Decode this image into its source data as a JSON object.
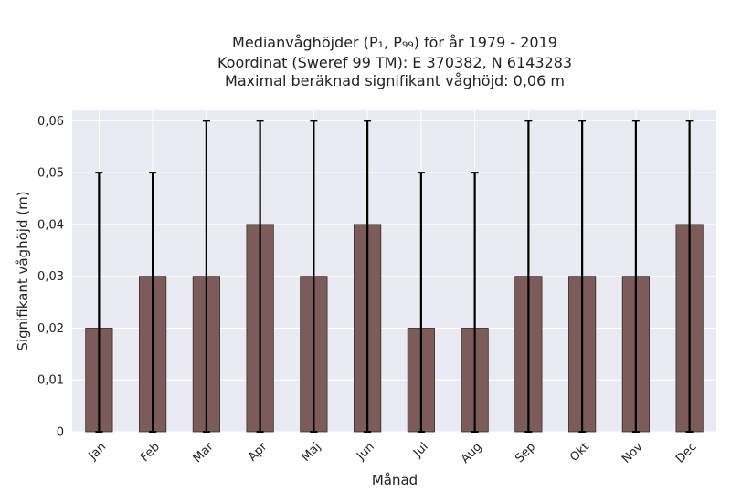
{
  "colors": {
    "plot_background": "#eaeaf2",
    "grid": "#ffffff",
    "bar_fill": "#7b5c5a",
    "bar_edge": "#3a2a29",
    "errorbar": "#000000"
  },
  "chart_data": {
    "type": "bar",
    "title_lines": [
      "Medianvåghöjder (P₁, P₉₉) för år 1979 - 2019",
      "Koordinat (Sweref 99 TM): E 370382, N 6143283",
      "Maximal beräknad signifikant våghöjd: 0,06 m"
    ],
    "xlabel": "Månad",
    "ylabel": "Signifikant våghöjd (m)",
    "ylim": [
      0,
      0.062
    ],
    "yticks": [
      0,
      0.01,
      0.02,
      0.03,
      0.04,
      0.05,
      0.06
    ],
    "ytick_labels": [
      "0",
      "0,01",
      "0,02",
      "0,03",
      "0,04",
      "0,05",
      "0,06"
    ],
    "categories": [
      "Jan",
      "Feb",
      "Mar",
      "Apr",
      "Maj",
      "Jun",
      "Jul",
      "Aug",
      "Sep",
      "Okt",
      "Nov",
      "Dec"
    ],
    "values": [
      0.02,
      0.03,
      0.03,
      0.04,
      0.03,
      0.04,
      0.02,
      0.02,
      0.03,
      0.03,
      0.03,
      0.04
    ],
    "p1": [
      0,
      0,
      0,
      0,
      0,
      0,
      0,
      0,
      0,
      0,
      0,
      0
    ],
    "p99": [
      0.05,
      0.05,
      0.06,
      0.06,
      0.06,
      0.06,
      0.05,
      0.05,
      0.06,
      0.06,
      0.06,
      0.06
    ],
    "grid": true,
    "legend": "none"
  }
}
